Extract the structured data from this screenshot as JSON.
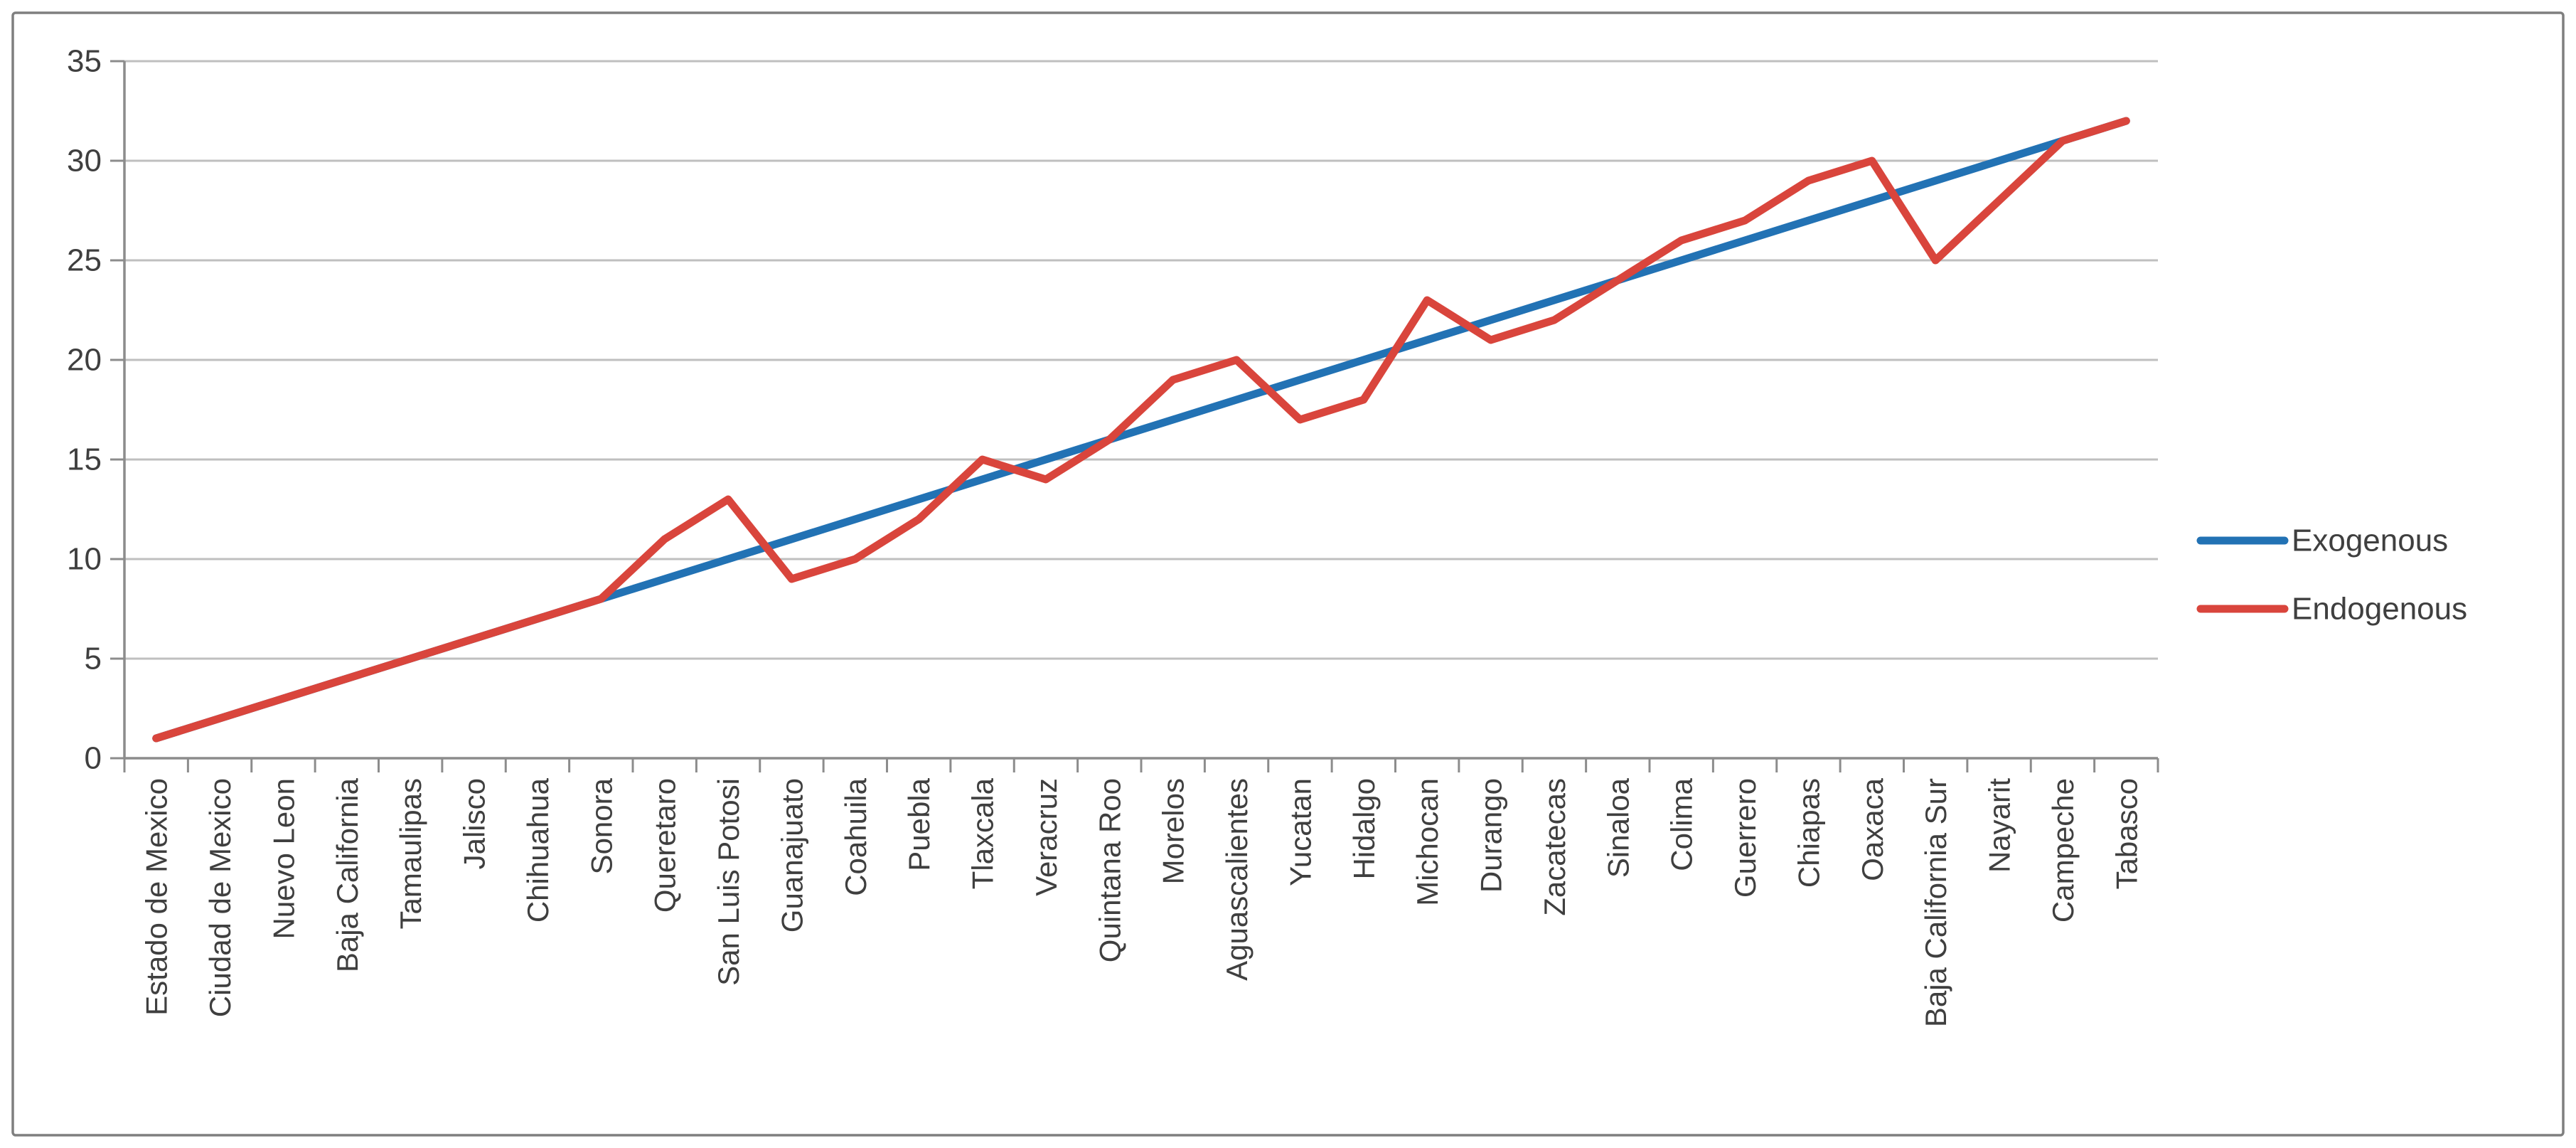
{
  "chart_data": {
    "type": "line",
    "title": "",
    "xlabel": "",
    "ylabel": "",
    "ylim": [
      0,
      35
    ],
    "ytick_interval": 5,
    "yticks": [
      "0",
      "5",
      "10",
      "15",
      "20",
      "25",
      "30",
      "35"
    ],
    "grid": true,
    "legend_position": "right",
    "categories": [
      "Estado de Mexico",
      "Ciudad de Mexico",
      "Nuevo Leon",
      "Baja California",
      "Tamaulipas",
      "Jalisco",
      "Chihuahua",
      "Sonora",
      "Queretaro",
      "San Luis Potosi",
      "Guanajuato",
      "Coahuila",
      "Puebla",
      "Tlaxcala",
      "Veracruz",
      "Quintana Roo",
      "Morelos",
      "Aguascalientes",
      "Yucatan",
      "Hidalgo",
      "Michocan",
      "Durango",
      "Zacatecas",
      "Sinaloa",
      "Colima",
      "Guerrero",
      "Chiapas",
      "Oaxaca",
      "Baja California Sur",
      "Nayarit",
      "Campeche",
      "Tabasco"
    ],
    "series": [
      {
        "name": "Exogenous",
        "color": "#2272b4",
        "values": [
          1,
          2,
          3,
          4,
          5,
          6,
          7,
          8,
          9,
          10,
          11,
          12,
          13,
          14,
          15,
          16,
          17,
          18,
          19,
          20,
          21,
          22,
          23,
          24,
          25,
          26,
          27,
          28,
          29,
          30,
          31,
          32
        ]
      },
      {
        "name": "Endogenous",
        "color": "#d9453c",
        "values": [
          1,
          2,
          3,
          4,
          5,
          6,
          7,
          8,
          11,
          13,
          9,
          10,
          12,
          15,
          14,
          16,
          19,
          20,
          17,
          18,
          23,
          21,
          22,
          24,
          26,
          27,
          29,
          30,
          25,
          28,
          31,
          32
        ]
      }
    ]
  },
  "colors": {
    "gridline": "#bfbfbf",
    "axis": "#8c8c8c",
    "tick_text": "#3f3f3f",
    "frame_border": "#7f7f7f",
    "background": "#ffffff"
  }
}
